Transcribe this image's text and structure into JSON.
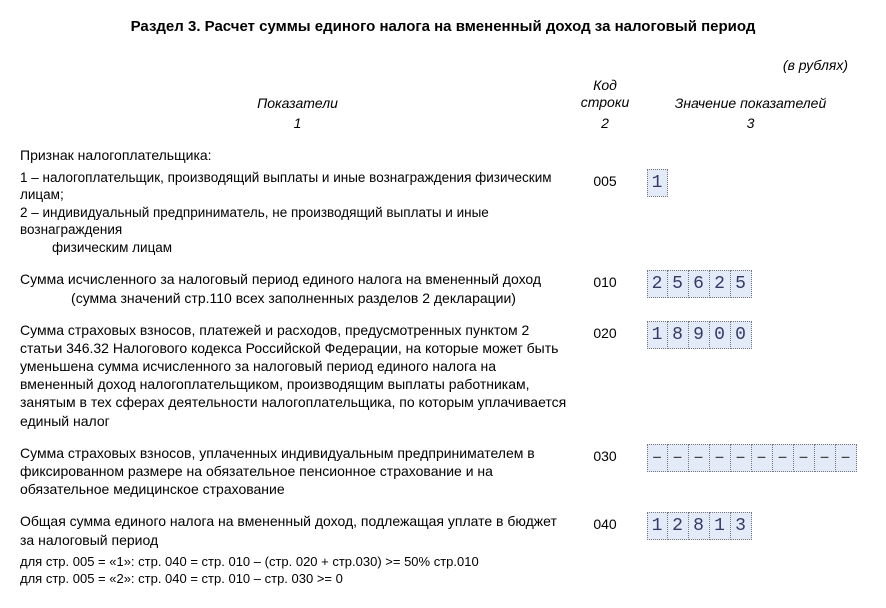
{
  "title": "Раздел 3. Расчет суммы единого налога на вмененный доход за налоговый период",
  "currency_note": "(в рублях)",
  "headers": {
    "col1": "Показатели",
    "col2": "Код строки",
    "col3": "Значение показателей"
  },
  "subheaders": {
    "col1": "1",
    "col2": "2",
    "col3": "3"
  },
  "taxpayer_sign": {
    "label": "Признак налогоплательщика:",
    "opt1": "1 – налогоплательщик, производящий выплаты и иные вознаграждения физическим лицам;",
    "opt2": "2 – индивидуальный предприниматель, не производящий выплаты и иные вознаграждения",
    "opt2b": "физическим лицам",
    "code": "005",
    "value": [
      "1"
    ]
  },
  "row010": {
    "text": "Сумма исчисленного за налоговый период единого налога на вмененный доход",
    "hint": "(сумма значений стр.110 всех заполненных разделов 2 декларации)",
    "code": "010",
    "value": [
      "2",
      "5",
      "6",
      "2",
      "5"
    ]
  },
  "row020": {
    "text": "Сумма страховых взносов, платежей и расходов, предусмотренных пунктом 2 статьи 346.32 Налогового кодекса Российской Федерации, на которые может быть уменьшена сумма исчисленного за налоговый период единого налога на вмененный доход налогоплательщиком, производящим выплаты работникам, занятым в тех сферах деятельности налогоплательщика, по которым уплачивается единый налог",
    "code": "020",
    "value": [
      "1",
      "8",
      "9",
      "0",
      "0"
    ]
  },
  "row030": {
    "text": "Сумма страховых взносов, уплаченных индивидуальным предпринимателем в фиксированном размере на обязательное пенсионное страхование и на обязательное медицинское страхование",
    "code": "030",
    "value": [
      "–",
      "–",
      "–",
      "–",
      "–",
      "–",
      "–",
      "–",
      "–",
      "–"
    ]
  },
  "row040": {
    "text": "Общая сумма единого налога на вмененный доход, подлежащая уплате в бюджет за налоговый период",
    "code": "040",
    "value": [
      "1",
      "2",
      "8",
      "1",
      "3"
    ]
  },
  "formulae": {
    "f1": "для стр. 005 = «1»: стр. 040 = стр. 010 – (стр. 020 + стр.030) >= 50% стр.010",
    "f2": "для стр. 005 = «2»: стр. 040 = стр. 010 – стр. 030 >= 0"
  }
}
